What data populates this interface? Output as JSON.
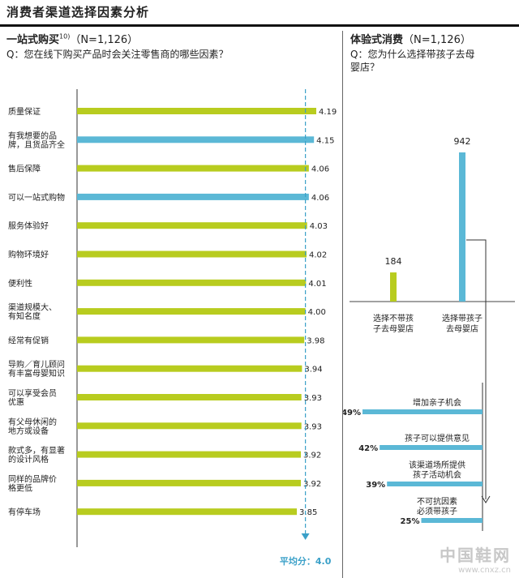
{
  "title": "消费者渠道选择因素分析",
  "left": {
    "title": "一站式购买",
    "footnote": "10)",
    "n": "（N=1,126）",
    "question": "Q：您在线下购买产品时会关注零售商的哪些因素？",
    "average_label": "平均分：4.0"
  },
  "right": {
    "title": "体验式消费",
    "n": "（N=1,126）",
    "question_line1": "Q：您为什么选择带孩子去母",
    "question_line2": "婴店？"
  },
  "colors": {
    "green": "#b8cc1f",
    "blue": "#5bb8d6",
    "dash": "#3aa0c8",
    "text": "#222222"
  },
  "chart_data": [
    {
      "type": "bar",
      "orientation": "horizontal",
      "xlim": [
        0,
        4.19
      ],
      "average": 4.0,
      "categories": [
        [
          "质量保证"
        ],
        [
          "有我想要的品",
          "牌，且货品齐全"
        ],
        [
          "售后保障"
        ],
        [
          "可以一站式购物"
        ],
        [
          "服务体验好"
        ],
        [
          "购物环境好"
        ],
        [
          "便利性"
        ],
        [
          "渠道规模大、",
          "有知名度"
        ],
        [
          "经常有促销"
        ],
        [
          "导购／育儿顾问",
          "有丰富母婴知识"
        ],
        [
          "可以享受会员",
          "优惠"
        ],
        [
          "有父母休闲的",
          "地方或设备"
        ],
        [
          "款式多，有显著",
          "的设计风格"
        ],
        [
          "同样的品牌价",
          "格更低"
        ],
        [
          "有停车场"
        ]
      ],
      "values": [
        4.19,
        4.15,
        4.06,
        4.06,
        4.03,
        4.02,
        4.01,
        4.0,
        3.98,
        3.94,
        3.93,
        3.93,
        3.92,
        3.92,
        3.85
      ],
      "labels": [
        "4.19",
        "4.15",
        "4.06",
        "4.06",
        "4.03",
        "4.02",
        "4.01",
        "4.00",
        "3.98",
        "3.94",
        "3.93",
        "3.93",
        "3.92",
        "3.92",
        "3.85"
      ],
      "highlight": [
        false,
        true,
        false,
        true,
        false,
        false,
        false,
        false,
        false,
        false,
        false,
        false,
        false,
        false,
        false
      ]
    },
    {
      "type": "bar",
      "orientation": "vertical",
      "categories": [
        [
          "选择不带孩",
          "子去母婴店"
        ],
        [
          "选择带孩子",
          "去母婴店"
        ]
      ],
      "values": [
        184,
        942
      ],
      "labels": [
        "184",
        "942"
      ],
      "colors": [
        "#b8cc1f",
        "#5bb8d6"
      ]
    },
    {
      "type": "bar",
      "orientation": "horizontal",
      "xlim": [
        0,
        0.49
      ],
      "unit": "%",
      "categories": [
        [
          "增加亲子机会"
        ],
        [
          "孩子可以提供意见"
        ],
        [
          "该渠道场所提供",
          "孩子活动机会"
        ],
        [
          "不可抗因素",
          "必须带孩子"
        ]
      ],
      "values": [
        49,
        42,
        39,
        25
      ],
      "labels": [
        "49%",
        "42%",
        "39%",
        "25%"
      ]
    }
  ],
  "watermark": {
    "name": "中国鞋网",
    "url": "www.cnxz.cn"
  }
}
